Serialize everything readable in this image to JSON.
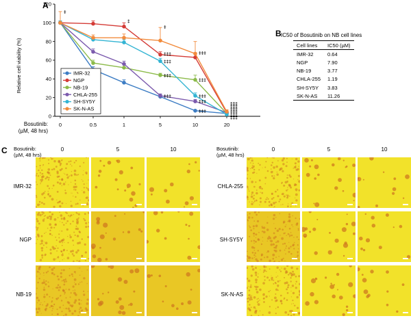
{
  "panels": {
    "a": "A",
    "b": "B",
    "c": "C"
  },
  "chart_data": {
    "type": "line",
    "ylabel": "Relative cell viability (%)",
    "xlabel_line1": "Bosutinib:",
    "xlabel_line2": "(µM, 48 hrs)",
    "categories": [
      "0",
      "0.5",
      "1",
      "5",
      "10",
      "20"
    ],
    "ylim": [
      0,
      120
    ],
    "yticks": [
      0,
      20,
      40,
      60,
      80,
      100,
      120
    ],
    "legend_position": "bottom-left",
    "series": [
      {
        "name": "IMR-32",
        "color": "#3d7dc4",
        "values": [
          100,
          50,
          36,
          21,
          6,
          3
        ],
        "errors": [
          2,
          3,
          3,
          2,
          1,
          1
        ]
      },
      {
        "name": "NGP",
        "color": "#d43b36",
        "values": [
          100,
          99,
          96,
          66,
          63,
          4
        ],
        "errors": [
          2,
          3,
          4,
          3,
          5,
          1
        ]
      },
      {
        "name": "NB-19",
        "color": "#8cbb4a",
        "values": [
          100,
          57,
          52,
          44,
          39,
          3
        ],
        "errors": [
          2,
          3,
          3,
          2,
          5,
          1
        ]
      },
      {
        "name": "CHLA-255",
        "color": "#7b5aad",
        "values": [
          100,
          69,
          56,
          22,
          16,
          4
        ],
        "errors": [
          2,
          3,
          3,
          2,
          2,
          1
        ]
      },
      {
        "name": "SH-SY5Y",
        "color": "#33b4d3",
        "values": [
          100,
          82,
          79,
          59,
          22,
          2
        ],
        "errors": [
          2,
          3,
          3,
          3,
          3,
          1
        ]
      },
      {
        "name": "SK-N-AS",
        "color": "#f28b3c",
        "values": [
          100,
          84,
          84,
          81,
          67,
          5
        ],
        "errors": [
          12,
          3,
          4,
          14,
          13,
          2
        ]
      }
    ],
    "annotations": [
      {
        "x": "0",
        "y": 112,
        "text": "‡"
      },
      {
        "x": "1",
        "y": 102,
        "text": "‡"
      },
      {
        "x": "5",
        "y": 96,
        "text": "‡"
      },
      {
        "x": "5",
        "y": 67,
        "text": "‡‡‡"
      },
      {
        "x": "5",
        "y": 59,
        "text": "‡‡‡"
      },
      {
        "x": "5",
        "y": 44,
        "text": "‡‡‡"
      },
      {
        "x": "5",
        "y": 22,
        "text": "‡‡‡"
      },
      {
        "x": "10",
        "y": 68,
        "text": "‡‡‡"
      },
      {
        "x": "10",
        "y": 39,
        "text": "‡‡‡"
      },
      {
        "x": "10",
        "y": 22,
        "text": "‡‡‡"
      },
      {
        "x": "10",
        "y": 16,
        "text": "‡‡‡"
      },
      {
        "x": "10",
        "y": 6,
        "text": "‡‡‡"
      },
      {
        "x": "20",
        "y": 14,
        "text": "‡‡‡"
      },
      {
        "x": "20",
        "y": 11,
        "text": "‡‡‡"
      },
      {
        "x": "20",
        "y": 8,
        "text": "‡‡‡"
      },
      {
        "x": "20",
        "y": 5,
        "text": "‡‡‡"
      },
      {
        "x": "20",
        "y": 2,
        "text": "‡‡‡"
      },
      {
        "x": "20",
        "y": -1,
        "text": "‡‡‡"
      }
    ]
  },
  "table": {
    "title": "IC50 of Bosutinib on NB cell lines",
    "headers": [
      "Cell lines",
      "IC50 (µM)"
    ],
    "rows": [
      [
        "IMR-32",
        "0.64"
      ],
      [
        "NGP",
        "7.90"
      ],
      [
        "NB-19",
        "3.77"
      ],
      [
        "CHLA-255",
        "1.19"
      ],
      [
        "SH-SY5Y",
        "3.83"
      ],
      [
        "SK-N-AS",
        "11.26"
      ]
    ]
  },
  "micro": {
    "corner_line1": "Bosutinib:",
    "corner_line2": "(µM, 48 hrs)",
    "doses": [
      "0",
      "5",
      "10"
    ],
    "left_cells": [
      "IMR-32",
      "NGP",
      "NB-19"
    ],
    "right_cells": [
      "CHLA-255",
      "SH-SY5Y",
      "SK-N-AS"
    ],
    "tile_colors": {
      "base": "#f2e22a",
      "cell": "#cf7a1f",
      "dense": "#d9961c"
    }
  }
}
